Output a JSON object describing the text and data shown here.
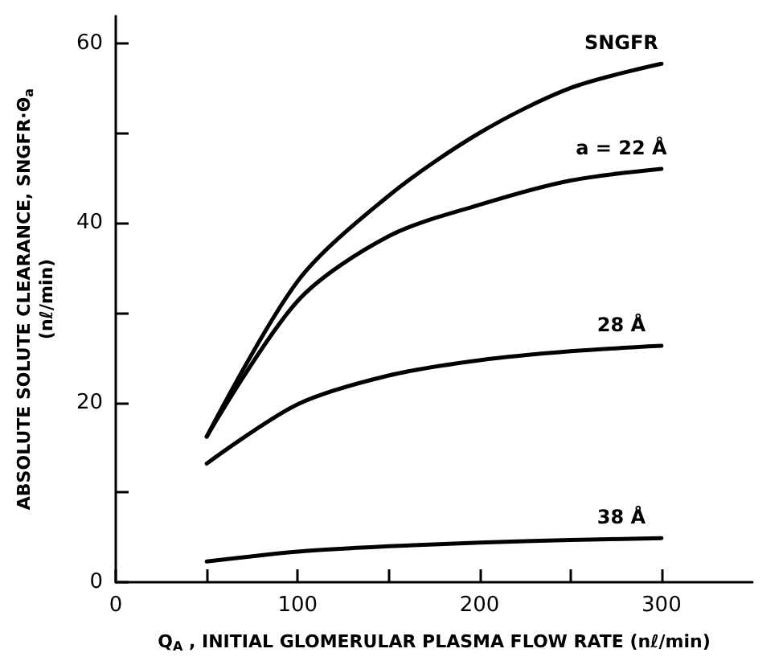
{
  "chart_data": {
    "type": "line",
    "xlabel": "Q$_{A}$ , INITIAL GLOMERULAR PLASMA FLOW RATE (nℓ/min)",
    "ylabel": "ABSOLUTE SOLUTE CLEARANCE, SNGFR·Θ$_{a}$\n(nℓ/min)",
    "x": [
      50,
      100,
      150,
      200,
      250,
      300
    ],
    "series": [
      {
        "name": "SNGFR",
        "color": "#000000",
        "values": [
          16.2,
          33.5,
          43,
          50,
          55,
          57.7
        ]
      },
      {
        "name": "a = 22 Å",
        "color": "#000000",
        "values": [
          16.2,
          31.3,
          38.5,
          42,
          44.7,
          46
        ]
      },
      {
        "name": "28 Å",
        "color": "#000000",
        "values": [
          13.2,
          19.8,
          23,
          24.7,
          25.7,
          26.3
        ]
      },
      {
        "name": "38 Å",
        "color": "#000000",
        "values": [
          2.3,
          3.4,
          4,
          4.4,
          4.7,
          4.9
        ]
      }
    ],
    "xlim": [
      0,
      350
    ],
    "xticks": [
      0,
      {
        "value": 50,
        "label": null
      },
      100,
      {
        "value": 150,
        "label": null
      },
      200,
      {
        "value": 250,
        "label": null
      },
      300
    ],
    "ylim": [
      0,
      63
    ],
    "yticks": [
      0,
      {
        "value": 10,
        "label": null
      },
      20,
      {
        "value": 30,
        "label": null
      },
      40,
      {
        "value": 50,
        "label": null
      },
      60
    ],
    "grid": false,
    "legend": false,
    "marker": "none",
    "line_style": "solid"
  }
}
